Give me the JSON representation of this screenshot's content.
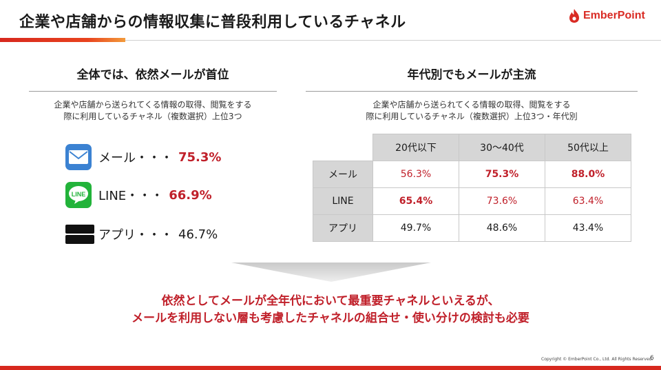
{
  "header": {
    "title": "企業や店舗からの情報収集に普段利用しているチャネル",
    "logo_text": "EmberPoint",
    "accent": "#d7281e"
  },
  "left": {
    "heading": "全体では、依然メールが首位",
    "desc_line1": "企業や店舗から送られてくる情報の取得、閲覧をする",
    "desc_line2": "際に利用しているチャネル（複数選択）上位3つ",
    "items": [
      {
        "icon": "mail-icon",
        "label": "メール・・・",
        "value": "75.3%"
      },
      {
        "icon": "line-app-icon",
        "label": "LINE・・・",
        "value": "66.9%"
      },
      {
        "icon": "app-store-badges-icon",
        "label": "アプリ・・・",
        "value": "46.7%"
      }
    ]
  },
  "right": {
    "heading": "年代別でもメールが主流",
    "desc_line1": "企業や店舗から送られてくる情報の取得、閲覧をする",
    "desc_line2": "際に利用しているチャネル（複数選択）上位3つ・年代別",
    "columns": [
      "20代以下",
      "30〜40代",
      "50代以上"
    ],
    "rows": [
      {
        "label": "メール",
        "values": [
          "56.3%",
          "75.3%",
          "88.0%"
        ]
      },
      {
        "label": "LINE",
        "values": [
          "65.4%",
          "73.6%",
          "63.4%"
        ]
      },
      {
        "label": "アプリ",
        "values": [
          "49.7%",
          "48.6%",
          "43.4%"
        ]
      }
    ]
  },
  "conclusion": {
    "line1": "依然としてメールが全年代において最重要チャネルといえるが、",
    "line2": "メールを利用しない層も考慮したチャネルの組合せ・使い分けの検討も必要"
  },
  "footer": {
    "copyright": "Copyright © EmberPoint Co., Ltd. All Rights Reserved.",
    "page": "6"
  }
}
